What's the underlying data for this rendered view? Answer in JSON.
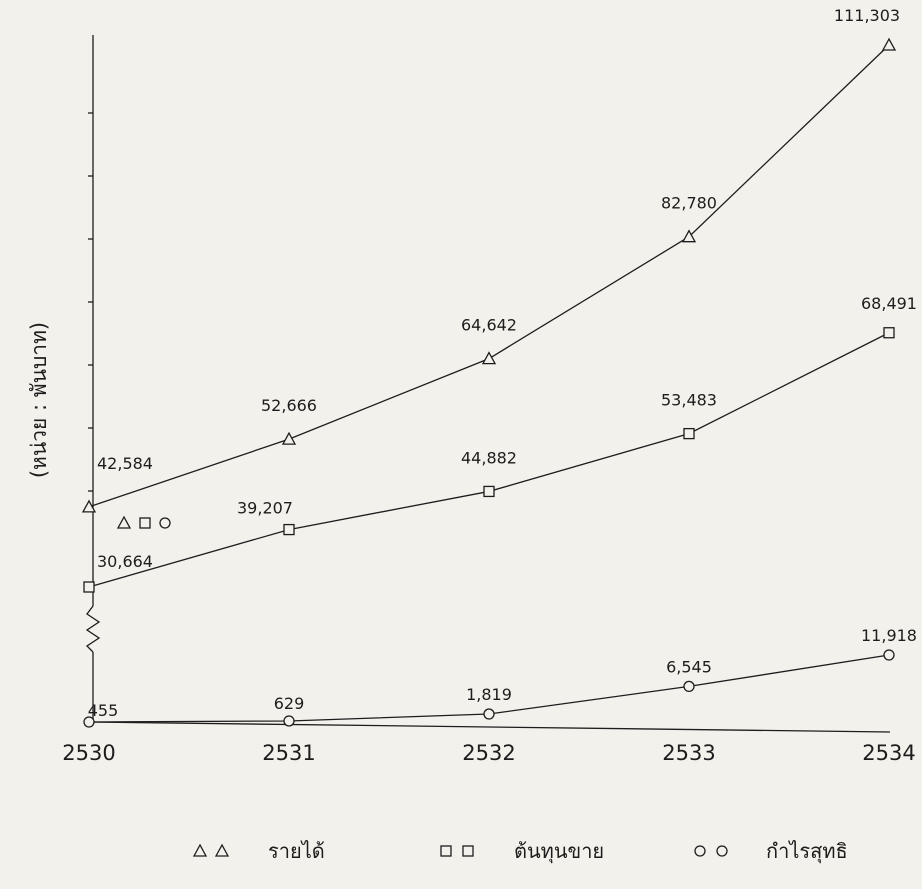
{
  "chart_data": {
    "type": "line",
    "y_unit_label": "(หน่วย : พันบาท)",
    "categories": [
      "2530",
      "2531",
      "2532",
      "2533",
      "2534"
    ],
    "y_axis_break": true,
    "series": [
      {
        "name": "รายได้",
        "marker": "triangle",
        "values": [
          42584,
          52666,
          64642,
          82780,
          111303
        ],
        "labels": [
          "42,584",
          "52,666",
          "64,642",
          "82,780",
          "111,303"
        ]
      },
      {
        "name": "ต้นทุนขาย",
        "marker": "square",
        "values": [
          30664,
          39207,
          44882,
          53483,
          68491
        ],
        "labels": [
          "30,664",
          "39,207",
          "44,882",
          "53,483",
          "68,491"
        ]
      },
      {
        "name": "กำไรสุทธิ",
        "marker": "circle",
        "values": [
          455,
          629,
          1819,
          6545,
          11918
        ],
        "labels": [
          "455",
          "629",
          "1,819",
          "6,545",
          "11,918"
        ]
      }
    ],
    "legend": {
      "position": "bottom"
    },
    "grid": false
  }
}
